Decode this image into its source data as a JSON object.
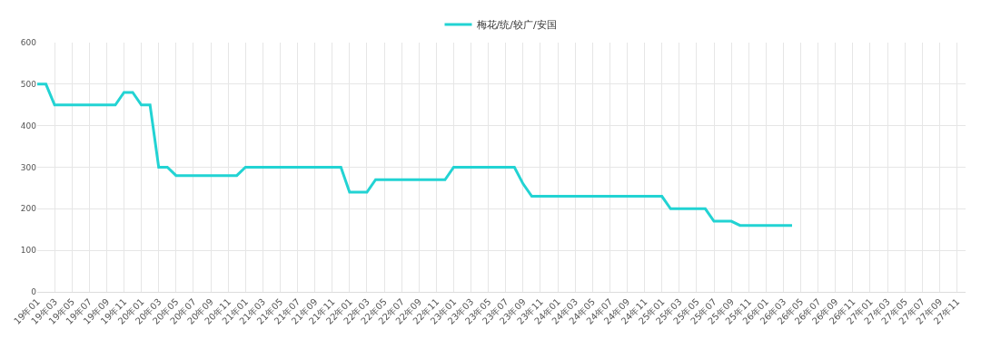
{
  "chart_data": {
    "type": "line",
    "categories": [
      "19年01",
      null,
      "19年03",
      null,
      "19年05",
      null,
      "19年07",
      null,
      "19年09",
      null,
      "19年11",
      null,
      "20年01",
      null,
      "20年03",
      null,
      "20年05",
      null,
      "20年07",
      null,
      "20年09",
      null,
      "20年11",
      null,
      "21年01",
      null,
      "21年03",
      null,
      "21年05",
      null,
      "21年07",
      null,
      "21年09",
      null,
      "21年11",
      null,
      "22年01",
      null,
      "22年03",
      null,
      "22年05",
      null,
      "22年07",
      null,
      "22年09",
      null,
      "22年11",
      null,
      "23年01",
      null,
      "23年03",
      null,
      "23年05",
      null,
      "23年07",
      null,
      "23年09",
      null,
      "23年11",
      null,
      "24年01",
      null,
      "24年03",
      null,
      "24年05",
      null,
      "24年07",
      null,
      "24年09",
      null,
      "24年11",
      null,
      "25年01",
      null,
      "25年03",
      null,
      "25年05",
      null,
      "25年07",
      null,
      "25年09",
      null,
      "25年11",
      null,
      "26年01",
      null,
      "26年03",
      null,
      "26年05",
      null,
      "26年07",
      null,
      "26年09",
      null,
      "26年11",
      null,
      "27年01",
      null,
      "27年03",
      null,
      "27年05",
      null,
      "27年07",
      null,
      "27年09",
      null,
      "27年11",
      null
    ],
    "series": [
      {
        "name": "梅花/统/较广/安国",
        "color": "#22d3d3",
        "values": [
          500,
          500,
          450,
          450,
          450,
          450,
          450,
          450,
          450,
          450,
          480,
          480,
          450,
          450,
          300,
          300,
          280,
          280,
          280,
          280,
          280,
          280,
          280,
          280,
          300,
          300,
          300,
          300,
          300,
          300,
          300,
          300,
          300,
          300,
          300,
          300,
          240,
          240,
          240,
          270,
          270,
          270,
          270,
          270,
          270,
          270,
          270,
          270,
          300,
          300,
          300,
          300,
          300,
          300,
          300,
          300,
          260,
          230,
          230,
          230,
          230,
          230,
          230,
          230,
          230,
          230,
          230,
          230,
          230,
          230,
          230,
          230,
          230,
          200,
          200,
          200,
          200,
          200,
          170,
          170,
          170,
          160,
          160,
          160,
          160,
          160,
          160,
          160,
          null,
          null,
          null,
          null,
          null,
          null,
          null,
          null,
          null,
          null,
          null,
          null,
          null,
          null,
          null,
          null,
          null,
          null,
          null,
          null
        ]
      }
    ],
    "ylim": [
      0,
      600
    ],
    "yticks": [
      0,
      100,
      200,
      300,
      400,
      500,
      600
    ],
    "grid": true,
    "legend": "top",
    "marker": "none",
    "line_style": "solid"
  }
}
